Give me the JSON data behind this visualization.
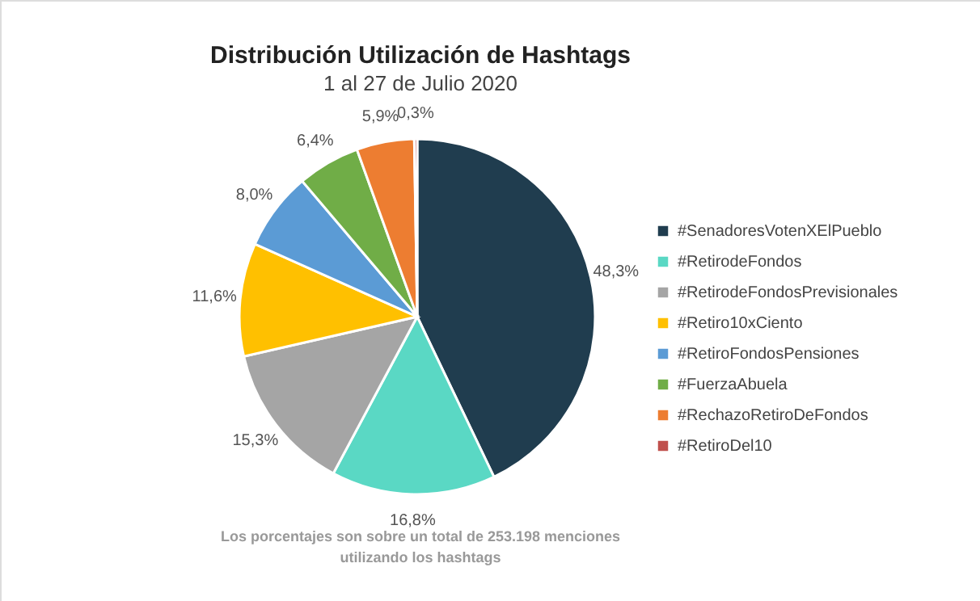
{
  "chart_data": {
    "type": "pie",
    "title": "Distribución Utilización de Hashtags",
    "subtitle": "1 al 27 de Julio 2020",
    "categories": [
      "#SenadoresVotenXElPueblo",
      "#RetirodeFondos",
      "#RetirodeFondosPrevisionales",
      "#Retiro10xCiento",
      "#RetiroFondosPensiones",
      "#FuerzaAbuela",
      "#RechazoRetiroDeFondos",
      "#RetiroDel10"
    ],
    "values": [
      48.3,
      16.8,
      15.3,
      11.6,
      8.0,
      6.4,
      5.9,
      0.3
    ],
    "value_labels": [
      "48,3%",
      "16,8%",
      "15,3%",
      "11,6%",
      "8,0%",
      "6,4%",
      "5,9%",
      "0,3%"
    ],
    "colors": [
      "#203d4f",
      "#5ad8c4",
      "#a5a5a5",
      "#ffc000",
      "#5b9bd5",
      "#70ad47",
      "#ed7d31",
      "#c0504d"
    ],
    "legend": "right",
    "annotations": [
      "Los porcentajes son sobre un total de 253.198 menciones utilizando los hashtags"
    ]
  }
}
